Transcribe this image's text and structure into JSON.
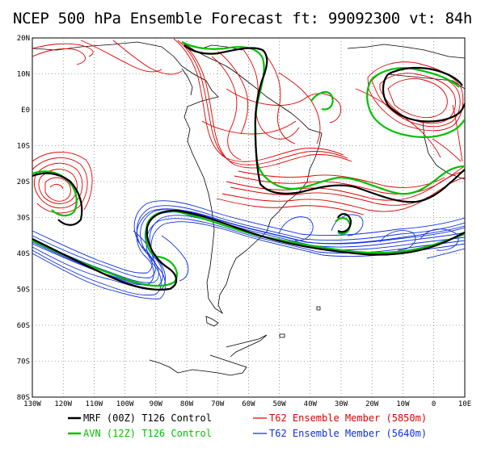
{
  "title": "NCEP 500 hPa Ensemble Forecast  ft: 99092300 vt: 84h",
  "lat_labels": [
    "20N",
    "10N",
    "E0",
    "10S",
    "20S",
    "30S",
    "40S",
    "50S",
    "60S",
    "70S",
    "80S"
  ],
  "lon_labels": [
    "130W",
    "120W",
    "110W",
    "100W",
    "90W",
    "80W",
    "70W",
    "60W",
    "50W",
    "40W",
    "30W",
    "20W",
    "10W",
    "0",
    "10E"
  ],
  "legend": [
    {
      "label": "MRF (00Z) T126 Control",
      "color": "#000000"
    },
    {
      "label": "T62 Ensemble Member (5850m)",
      "color": "#e00000"
    },
    {
      "label": "AVN (12Z) T126 Control",
      "color": "#00c000"
    },
    {
      "label": "T62 Ensemble Member (5640m)",
      "color": "#1030e0"
    }
  ],
  "colors": {
    "mrf": "#000000",
    "avn": "#00c000",
    "red_member": "#e00000",
    "blue_member": "#1030e0"
  }
}
